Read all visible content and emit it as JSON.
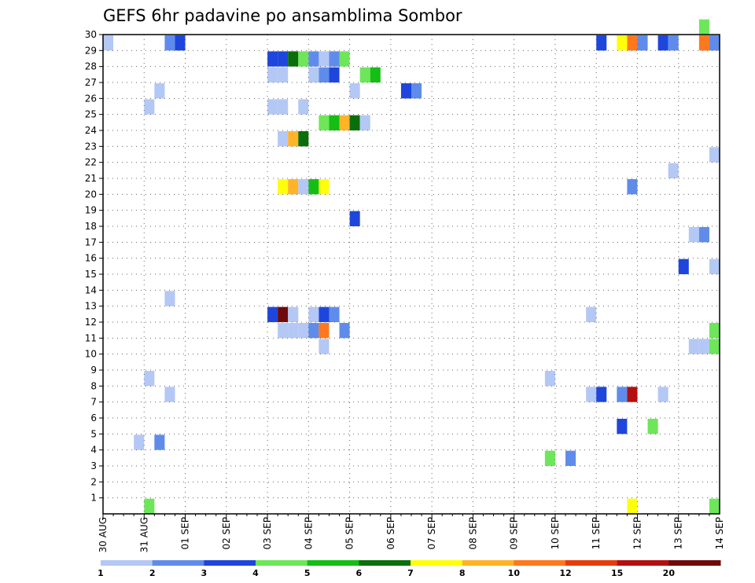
{
  "chart_data": {
    "type": "heatmap",
    "title": "GEFS 6hr padavine po ansamblima Sombor",
    "xlabel": "",
    "ylabel": "",
    "x_ticks": [
      "30 AUG",
      "31 AUG",
      "01 SEP",
      "02 SEP",
      "03 SEP",
      "04 SEP",
      "05 SEP",
      "06 SEP",
      "07 SEP",
      "08 SEP",
      "09 SEP",
      "10 SEP",
      "11 SEP",
      "12 SEP",
      "13 SEP",
      "14 SEP"
    ],
    "y_ticks": [
      "1",
      "2",
      "3",
      "4",
      "5",
      "6",
      "7",
      "8",
      "9",
      "10",
      "11",
      "12",
      "13",
      "14",
      "15",
      "16",
      "17",
      "18",
      "19",
      "20",
      "21",
      "22",
      "23",
      "24",
      "25",
      "26",
      "27",
      "28",
      "29",
      "30"
    ],
    "xlim": [
      0,
      60
    ],
    "ylim": [
      0,
      30
    ],
    "grid": true,
    "colorbar": {
      "labels": [
        "1",
        "2",
        "3",
        "4",
        "5",
        "6",
        "7",
        "8",
        "10",
        "12",
        "15",
        "20"
      ],
      "colors": [
        "#b4c8f5",
        "#5f8ceb",
        "#1e46dc",
        "#6ee65a",
        "#14be14",
        "#0a6e0a",
        "#ffff0a",
        "#ffb428",
        "#ff781e",
        "#e63c0a",
        "#b40f0f",
        "#6e0a0a"
      ]
    },
    "cells": [
      [
        0,
        29,
        "#b4c8f5"
      ],
      [
        4,
        0,
        "#6ee65a"
      ],
      [
        3,
        4,
        "#b4c8f5"
      ],
      [
        5,
        4,
        "#5f8ceb"
      ],
      [
        6,
        7,
        "#b4c8f5"
      ],
      [
        6,
        13,
        "#b4c8f5"
      ],
      [
        4,
        8,
        "#b4c8f5"
      ],
      [
        4,
        25,
        "#b4c8f5"
      ],
      [
        5,
        26,
        "#b4c8f5"
      ],
      [
        6,
        29,
        "#5f8ceb"
      ],
      [
        7,
        29,
        "#1e46dc"
      ],
      [
        16,
        28,
        "#1e46dc"
      ],
      [
        17,
        28,
        "#1e46dc"
      ],
      [
        18,
        28,
        "#0a6e0a"
      ],
      [
        19,
        28,
        "#6ee65a"
      ],
      [
        20,
        28,
        "#5f8ceb"
      ],
      [
        21,
        28,
        "#b4c8f5"
      ],
      [
        22,
        28,
        "#5f8ceb"
      ],
      [
        23,
        28,
        "#6ee65a"
      ],
      [
        16,
        27,
        "#b4c8f5"
      ],
      [
        17,
        27,
        "#b4c8f5"
      ],
      [
        20,
        27,
        "#b4c8f5"
      ],
      [
        21,
        27,
        "#5f8ceb"
      ],
      [
        22,
        27,
        "#1e46dc"
      ],
      [
        25,
        27,
        "#6ee65a"
      ],
      [
        26,
        27,
        "#14be14"
      ],
      [
        24,
        26,
        "#b4c8f5"
      ],
      [
        29,
        26,
        "#1e46dc"
      ],
      [
        30,
        26,
        "#5f8ceb"
      ],
      [
        16,
        25,
        "#b4c8f5"
      ],
      [
        17,
        25,
        "#b4c8f5"
      ],
      [
        19,
        25,
        "#b4c8f5"
      ],
      [
        21,
        24,
        "#6ee65a"
      ],
      [
        22,
        24,
        "#14be14"
      ],
      [
        23,
        24,
        "#ffb428"
      ],
      [
        24,
        24,
        "#0a6e0a"
      ],
      [
        25,
        24,
        "#b4c8f5"
      ],
      [
        17,
        23,
        "#b4c8f5"
      ],
      [
        18,
        23,
        "#ffb428"
      ],
      [
        19,
        23,
        "#0a6e0a"
      ],
      [
        59,
        22,
        "#b4c8f5"
      ],
      [
        55,
        21,
        "#b4c8f5"
      ],
      [
        17,
        20,
        "#ffff0a"
      ],
      [
        18,
        20,
        "#ffb428"
      ],
      [
        19,
        20,
        "#b4c8f5"
      ],
      [
        20,
        20,
        "#14be14"
      ],
      [
        21,
        20,
        "#ffff0a"
      ],
      [
        51,
        20,
        "#5f8ceb"
      ],
      [
        24,
        18,
        "#1e46dc"
      ],
      [
        57,
        17,
        "#b4c8f5"
      ],
      [
        58,
        17,
        "#5f8ceb"
      ],
      [
        56,
        15,
        "#1e46dc"
      ],
      [
        59,
        15,
        "#b4c8f5"
      ],
      [
        16,
        12,
        "#1e46dc"
      ],
      [
        17,
        12,
        "#6e0a0a"
      ],
      [
        18,
        12,
        "#b4c8f5"
      ],
      [
        20,
        12,
        "#b4c8f5"
      ],
      [
        21,
        12,
        "#1e46dc"
      ],
      [
        22,
        12,
        "#5f8ceb"
      ],
      [
        47,
        12,
        "#b4c8f5"
      ],
      [
        17,
        11,
        "#b4c8f5"
      ],
      [
        18,
        11,
        "#b4c8f5"
      ],
      [
        19,
        11,
        "#b4c8f5"
      ],
      [
        20,
        11,
        "#5f8ceb"
      ],
      [
        21,
        11,
        "#ff781e"
      ],
      [
        23,
        11,
        "#5f8ceb"
      ],
      [
        59,
        11,
        "#6ee65a"
      ],
      [
        21,
        10,
        "#b4c8f5"
      ],
      [
        57,
        10,
        "#b4c8f5"
      ],
      [
        58,
        10,
        "#b4c8f5"
      ],
      [
        59,
        10,
        "#6ee65a"
      ],
      [
        43,
        8,
        "#b4c8f5"
      ],
      [
        47,
        7,
        "#b4c8f5"
      ],
      [
        48,
        7,
        "#1e46dc"
      ],
      [
        50,
        7,
        "#5f8ceb"
      ],
      [
        51,
        7,
        "#b40f0f"
      ],
      [
        54,
        7,
        "#b4c8f5"
      ],
      [
        50,
        5,
        "#1e46dc"
      ],
      [
        53,
        5,
        "#6ee65a"
      ],
      [
        43,
        3,
        "#6ee65a"
      ],
      [
        45,
        3,
        "#5f8ceb"
      ],
      [
        48,
        29,
        "#1e46dc"
      ],
      [
        50,
        29,
        "#ffff0a"
      ],
      [
        51,
        29,
        "#ff781e"
      ],
      [
        52,
        29,
        "#5f8ceb"
      ],
      [
        54,
        29,
        "#1e46dc"
      ],
      [
        55,
        29,
        "#5f8ceb"
      ],
      [
        58,
        29,
        "#ff781e"
      ],
      [
        59,
        29,
        "#5f8ceb"
      ],
      [
        58,
        30,
        "#6ee65a"
      ],
      [
        51,
        0,
        "#ffff0a"
      ],
      [
        59,
        0,
        "#6ee65a"
      ]
    ]
  }
}
